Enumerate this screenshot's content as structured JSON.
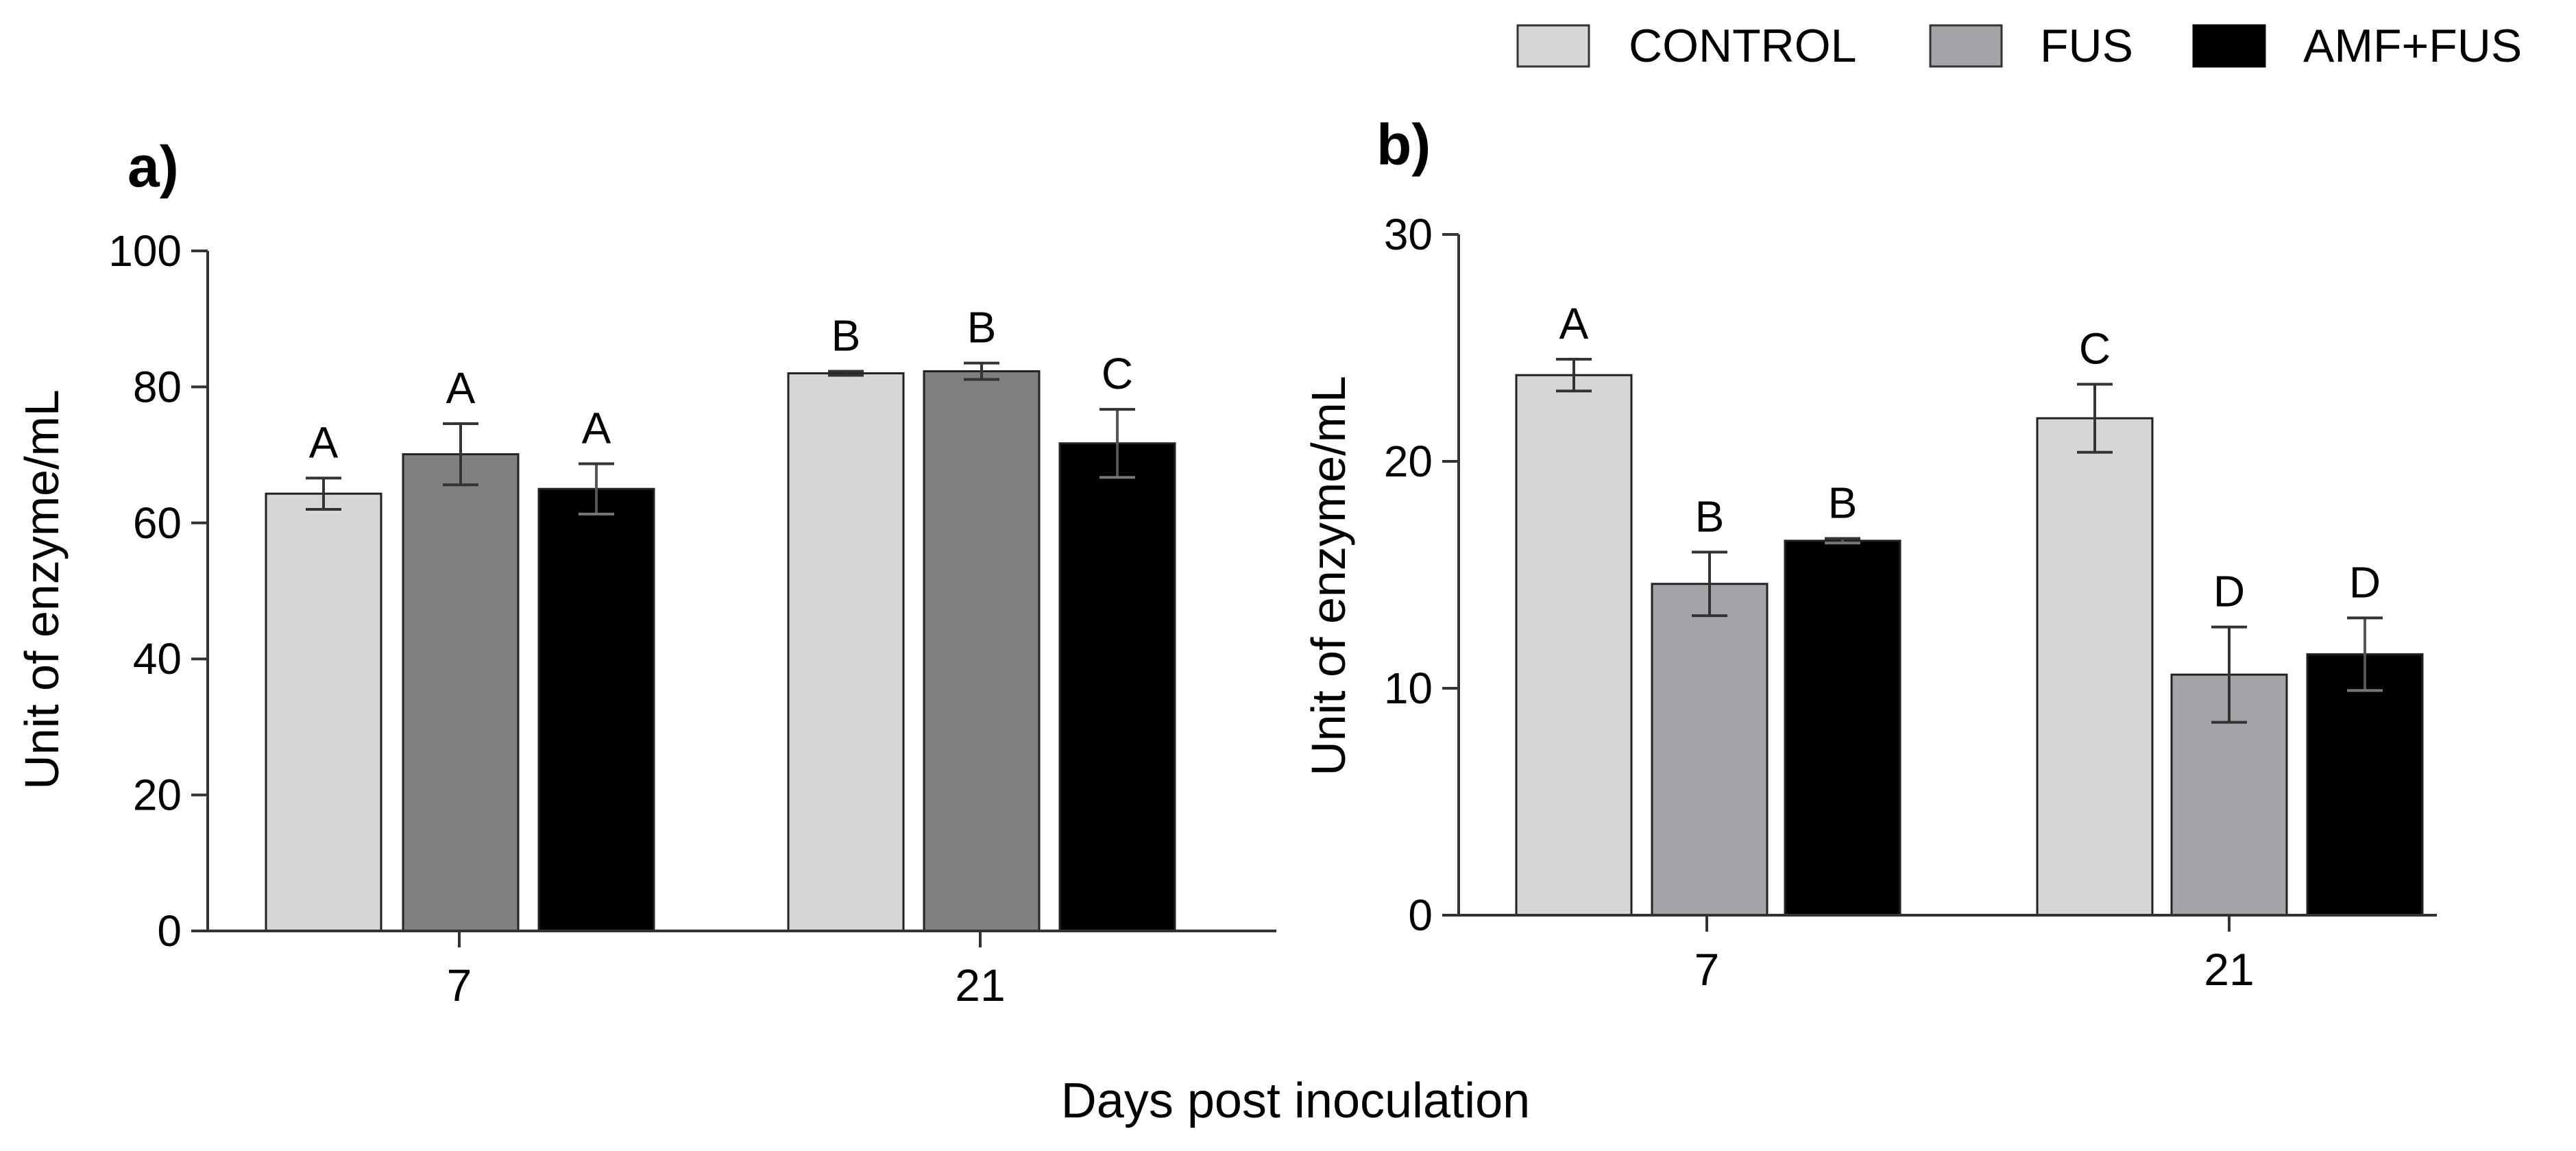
{
  "legend": [
    {
      "name": "CONTROL"
    },
    {
      "name": "FUS"
    },
    {
      "name": "AMF+FUS"
    }
  ],
  "xlabel": "Days post inoculation",
  "chart_data": [
    {
      "type": "bar",
      "panel": "a)",
      "title": "",
      "xlabel": "",
      "ylabel": "Unit of enzyme/mL",
      "ylim": [
        0,
        100
      ],
      "yticks": [
        "0",
        "20",
        "40",
        "60",
        "80",
        "100"
      ],
      "categories": [
        "7",
        "21"
      ],
      "series": [
        {
          "name": "CONTROL",
          "color": "#d6d6d6",
          "values": [
            64.3,
            82.0
          ],
          "errors": [
            2.3,
            0.3
          ],
          "letters": [
            "A",
            "B"
          ]
        },
        {
          "name": "FUS",
          "color": "#808080",
          "values": [
            70.1,
            82.3
          ],
          "errors": [
            4.5,
            1.2
          ],
          "letters": [
            "A",
            "B"
          ]
        },
        {
          "name": "AMF+FUS",
          "color": "#000000",
          "values": [
            65.0,
            71.7
          ],
          "errors": [
            3.7,
            5.0
          ],
          "letters": [
            "A",
            "C"
          ]
        }
      ]
    },
    {
      "type": "bar",
      "panel": "b)",
      "title": "",
      "xlabel": "",
      "ylabel": "Unit of enzyme/mL",
      "ylim": [
        0,
        30
      ],
      "yticks": [
        "0",
        "10",
        "20",
        "30"
      ],
      "categories": [
        "7",
        "21"
      ],
      "series": [
        {
          "name": "CONTROL",
          "color": "#d6d6d6",
          "values": [
            23.8,
            21.9
          ],
          "errors": [
            0.7,
            1.5
          ],
          "letters": [
            "A",
            "C"
          ]
        },
        {
          "name": "FUS",
          "color": "#a3a3a8",
          "values": [
            14.6,
            10.6
          ],
          "errors": [
            1.4,
            2.1
          ],
          "letters": [
            "B",
            "D"
          ]
        },
        {
          "name": "AMF+FUS",
          "color": "#000000",
          "values": [
            16.5,
            11.5
          ],
          "errors": [
            0.1,
            1.6
          ],
          "letters": [
            "B",
            "D"
          ]
        }
      ]
    }
  ]
}
